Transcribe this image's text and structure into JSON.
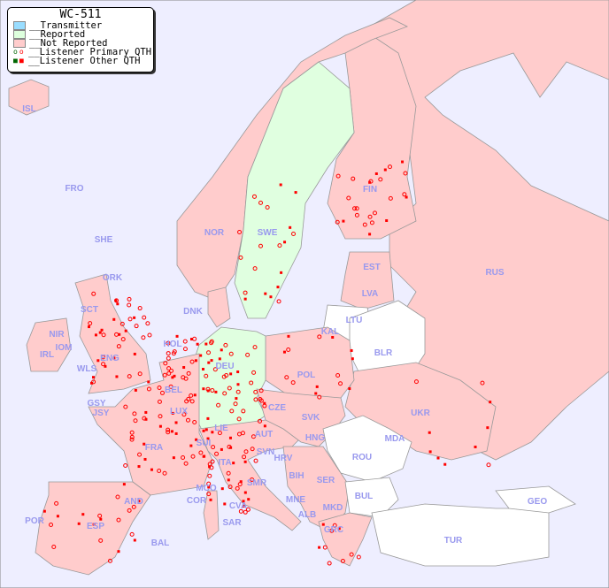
{
  "legend": {
    "title": "WC-511",
    "items": [
      {
        "label": "__Transmitter",
        "color": "#99ddff"
      },
      {
        "label": "__Reported",
        "color": "#ddffdd"
      },
      {
        "label": "__Not Reported",
        "color": "#ffcccc"
      },
      {
        "label": "__Listener Primary QTH",
        "marker": "circle"
      },
      {
        "label": "__Listener Other QTH",
        "marker": "square"
      }
    ]
  },
  "colors": {
    "sea": "#eeeeff",
    "not_reported": "#ffcccc",
    "reported": "#e0ffe0",
    "unlisted": "#ffffff",
    "label": "#9999ee",
    "marker": "#ff0000"
  },
  "countries": [
    "ISL",
    "FRO",
    "SHE",
    "ORK",
    "NOR",
    "SWE",
    "FIN",
    "RUS",
    "EST",
    "LVA",
    "LTU",
    "KAL",
    "BLR",
    "DNK",
    "HOL",
    "DEU",
    "POL",
    "UKR",
    "IRL",
    "NIR",
    "SCT",
    "IOM",
    "WLS",
    "ENG",
    "GSY",
    "JSY",
    "BEL",
    "LUX",
    "FRA",
    "SUI",
    "LIE",
    "AUT",
    "CZE",
    "SVK",
    "HNG",
    "MDA",
    "ROU",
    "SVN",
    "HRV",
    "BIH",
    "SER",
    "ITA",
    "SMR",
    "MCO",
    "COR",
    "CVA",
    "MNE",
    "ALB",
    "MKD",
    "BUL",
    "GRC",
    "TUR",
    "GEO",
    "AND",
    "POR",
    "ESP",
    "BAL",
    "SAR"
  ]
}
